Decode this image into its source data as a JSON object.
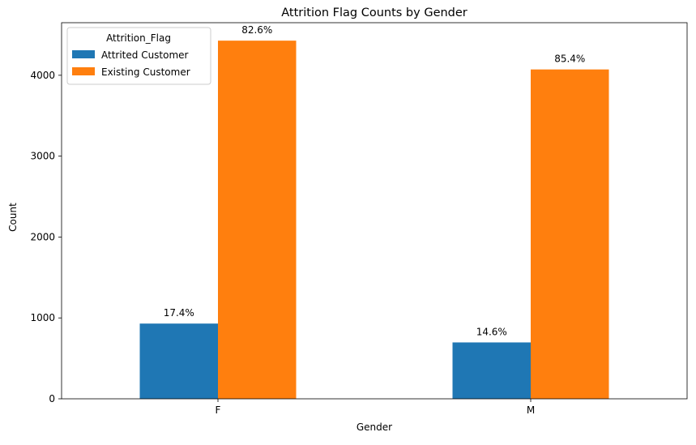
{
  "chart_data": {
    "type": "bar",
    "title": "Attrition Flag Counts by Gender",
    "xlabel": "Gender",
    "ylabel": "Count",
    "categories": [
      "F",
      "M"
    ],
    "ylim": [
      0,
      4650
    ],
    "yticks": [
      0,
      1000,
      2000,
      3000,
      4000
    ],
    "series": [
      {
        "name": "Attrited Customer",
        "color": "#1f77b4",
        "values": [
          930,
          697
        ],
        "labels": [
          "17.4%",
          "14.6%"
        ]
      },
      {
        "name": "Existing Customer",
        "color": "#ff7f0e",
        "values": [
          4428,
          4072
        ],
        "labels": [
          "82.6%",
          "85.4%"
        ]
      }
    ],
    "legend": {
      "title": "Attrition_Flag",
      "position": "top-left"
    },
    "grid": false
  }
}
